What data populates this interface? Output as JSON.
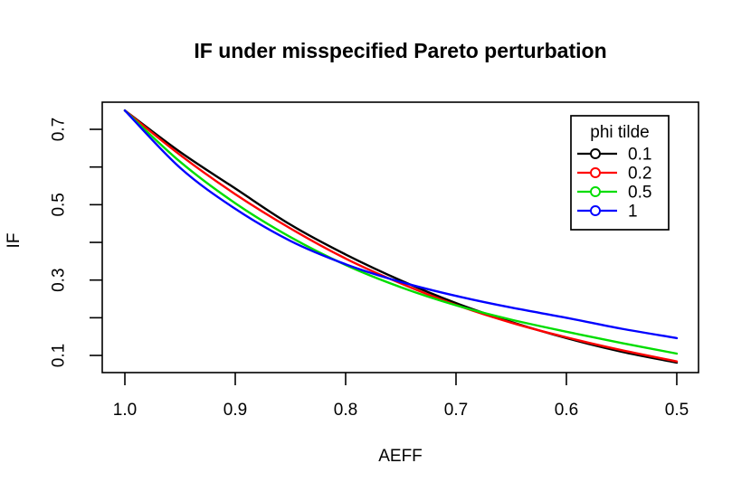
{
  "chart_data": {
    "type": "line",
    "title": "IF under misspecified Pareto perturbation",
    "xlabel": "AEFF",
    "ylabel": "IF",
    "x_axis_reversed": true,
    "xlim": [
      1.0205,
      0.4803
    ],
    "ylim": [
      0.0545,
      0.772
    ],
    "grid": false,
    "x_ticks": {
      "values": [
        1.0,
        0.9,
        0.8,
        0.7,
        0.6,
        0.5
      ],
      "labels": [
        "1.0",
        "0.9",
        "0.8",
        "0.7",
        "0.6",
        "0.5"
      ]
    },
    "y_ticks": {
      "values": [
        0.1,
        0.2,
        0.3,
        0.4,
        0.5,
        0.6,
        0.7
      ],
      "labels": [
        "0.1",
        "",
        "0.3",
        "",
        "0.5",
        "",
        "0.7"
      ]
    },
    "legend": {
      "title": "phi tilde",
      "position": "top-right",
      "marker": "open-circle-on-line"
    },
    "x": [
      1.0,
      0.95,
      0.9,
      0.85,
      0.8,
      0.75,
      0.7,
      0.65,
      0.6,
      0.55,
      0.5
    ],
    "series": [
      {
        "name": "0.1",
        "color": "#000000",
        "values": [
          0.75,
          0.64,
          0.543,
          0.447,
          0.368,
          0.299,
          0.239,
          0.189,
          0.146,
          0.11,
          0.081
        ]
      },
      {
        "name": "0.2",
        "color": "#FF0000",
        "values": [
          0.75,
          0.632,
          0.528,
          0.437,
          0.357,
          0.291,
          0.234,
          0.187,
          0.148,
          0.114,
          0.084
        ]
      },
      {
        "name": "0.5",
        "color": "#00DD00",
        "values": [
          0.75,
          0.614,
          0.504,
          0.414,
          0.34,
          0.281,
          0.233,
          0.195,
          0.163,
          0.133,
          0.105
        ]
      },
      {
        "name": "1",
        "color": "#0000FF",
        "values": [
          0.75,
          0.598,
          0.489,
          0.404,
          0.342,
          0.295,
          0.258,
          0.227,
          0.2,
          0.171,
          0.146
        ]
      }
    ],
    "axis_color": "#000000",
    "background_color": "#FFFFFF"
  }
}
